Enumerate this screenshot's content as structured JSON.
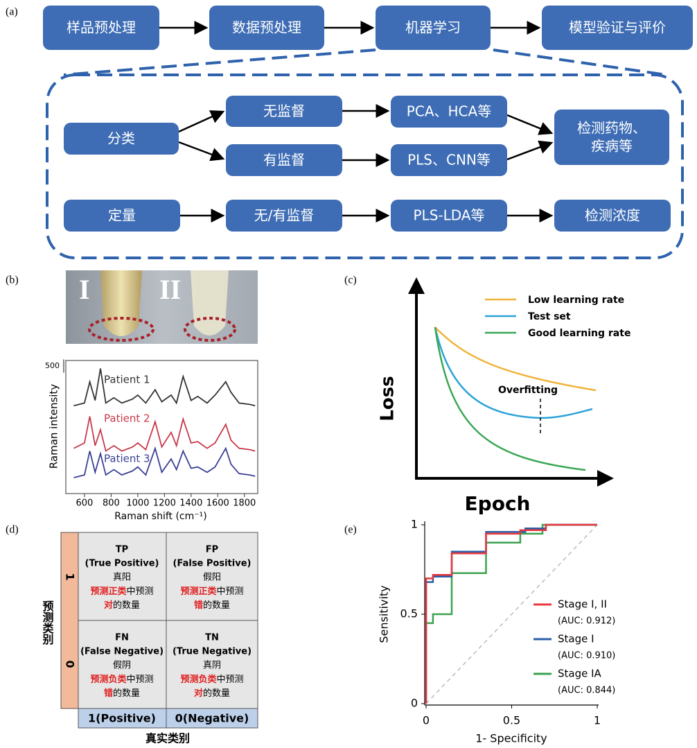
{
  "panel_labels": [
    "(a)",
    "(b)",
    "(c)",
    "(d)",
    "(e)"
  ],
  "flowchart": {
    "nodes": [
      {
        "lines": [
          "样品预处理"
        ]
      },
      {
        "lines": [
          "数据预处理"
        ]
      },
      {
        "lines": [
          "机器学习"
        ]
      },
      {
        "lines": [
          "模型验证与评价"
        ]
      },
      {
        "lines": [
          "分类"
        ]
      },
      {
        "lines": [
          "无监督"
        ]
      },
      {
        "lines": [
          "有监督"
        ]
      },
      {
        "lines": [
          "PCA、HCA等"
        ]
      },
      {
        "lines": [
          "PLS、CNN等"
        ]
      },
      {
        "lines": [
          "检测药物、",
          "疾病等"
        ]
      },
      {
        "lines": [
          "定量"
        ]
      },
      {
        "lines": [
          "无/有监督"
        ]
      },
      {
        "lines": [
          "PLS-LDA等"
        ]
      },
      {
        "lines": [
          "检测浓度"
        ]
      }
    ]
  },
  "photo": {
    "labels": [
      "I",
      "II"
    ]
  },
  "loss_diagram": {
    "y_label": "Loss",
    "x_label": "Epoch",
    "legend": [
      "Low learning rate",
      "Test set",
      "Good learning rate"
    ],
    "annotation": "Overfitting"
  },
  "confusion_matrix": {
    "y_label": "预测类别",
    "x_label": "真实类别",
    "row_labels": [
      "1",
      "0"
    ],
    "col_labels": [
      "1(Positive)",
      "0(Negative)"
    ],
    "cells": [
      [
        {
          "code": "TP",
          "name": "(True Positive)",
          "zh": "真阳",
          "pred_class": "预测正类",
          "mid": "中预测",
          "verdict": "对",
          "tail": "的数量"
        },
        {
          "code": "FP",
          "name": "(False Positive)",
          "zh": "假阳",
          "pred_class": "预测正类",
          "mid": "中预测",
          "verdict": "错",
          "tail": "的数量"
        }
      ],
      [
        {
          "code": "FN",
          "name": "(False Negative)",
          "zh": "假阴",
          "pred_class": "预测负类",
          "mid": "中预测",
          "verdict": "错",
          "tail": "的数量"
        },
        {
          "code": "TN",
          "name": "(True Negative)",
          "zh": "真阴",
          "pred_class": "预测负类",
          "mid": "中预测",
          "verdict": "对",
          "tail": "的数量"
        }
      ]
    ]
  },
  "chart_data": [
    {
      "type": "line",
      "x_label": "Raman shift (cm⁻¹)",
      "y_label": "Raman intensity",
      "xlim": [
        460,
        1900
      ],
      "xticks": [
        600,
        800,
        1000,
        1200,
        1400,
        1600,
        1800
      ],
      "ylim": [
        0,
        5000
      ],
      "scale_bar": 500,
      "x": [
        520,
        600,
        640,
        680,
        720,
        760,
        820,
        880,
        960,
        1000,
        1060,
        1130,
        1180,
        1250,
        1290,
        1340,
        1400,
        1450,
        1520,
        1580,
        1660,
        1700,
        1760,
        1840,
        1880
      ],
      "series": [
        {
          "name": "Patient 1",
          "color": "#333333",
          "values": [
            3300,
            3400,
            4200,
            3500,
            4700,
            3400,
            3600,
            3400,
            3550,
            3700,
            3400,
            3900,
            3450,
            3700,
            3400,
            4400,
            3500,
            3650,
            3400,
            3700,
            4200,
            3800,
            3400,
            3350,
            3300
          ]
        },
        {
          "name": "Patient 2",
          "color": "#c8384a",
          "values": [
            1700,
            1900,
            2900,
            1800,
            2400,
            1600,
            1800,
            1600,
            1750,
            1900,
            1650,
            2700,
            1750,
            2300,
            1800,
            2800,
            1900,
            1950,
            1700,
            1900,
            2600,
            2000,
            1700,
            1650,
            1600
          ]
        },
        {
          "name": "Patient 3",
          "color": "#3a3f94",
          "values": [
            600,
            700,
            1600,
            800,
            1500,
            700,
            900,
            700,
            850,
            1000,
            700,
            1700,
            800,
            1300,
            900,
            1600,
            950,
            1000,
            800,
            1000,
            1700,
            1100,
            750,
            700,
            650
          ]
        }
      ]
    },
    {
      "type": "line",
      "x_label": "1- Specificity",
      "y_label": "Sensitivity",
      "xlim": [
        0,
        1
      ],
      "ylim": [
        0,
        1
      ],
      "xticks": [
        0,
        0.5,
        1
      ],
      "yticks": [
        0,
        0.5,
        1
      ],
      "series": [
        {
          "name": "Stage I, II",
          "auc_label": "(AUC: 0.912)",
          "color": "#e8383d",
          "x": [
            0,
            0,
            0.04,
            0.04,
            0.15,
            0.15,
            0.35,
            0.35,
            0.55,
            0.55,
            0.7,
            0.7,
            1
          ],
          "values": [
            0,
            0.7,
            0.7,
            0.72,
            0.72,
            0.84,
            0.84,
            0.95,
            0.95,
            0.97,
            0.97,
            1,
            1
          ]
        },
        {
          "name": "Stage I",
          "auc_label": "(AUC: 0.910)",
          "color": "#2b5ea8",
          "x": [
            0,
            0,
            0.04,
            0.04,
            0.15,
            0.15,
            0.35,
            0.35,
            0.58,
            0.58,
            0.7,
            0.7,
            1
          ],
          "values": [
            0,
            0.68,
            0.68,
            0.71,
            0.71,
            0.85,
            0.85,
            0.96,
            0.96,
            0.98,
            0.98,
            1,
            1
          ]
        },
        {
          "name": "Stage IA",
          "auc_label": "(AUC: 0.844)",
          "color": "#3ba150",
          "x": [
            0,
            0,
            0.04,
            0.04,
            0.15,
            0.15,
            0.35,
            0.35,
            0.55,
            0.55,
            0.68,
            0.68,
            1
          ],
          "values": [
            0,
            0.45,
            0.45,
            0.5,
            0.5,
            0.73,
            0.73,
            0.9,
            0.9,
            0.95,
            0.95,
            1,
            1
          ]
        }
      ]
    }
  ]
}
